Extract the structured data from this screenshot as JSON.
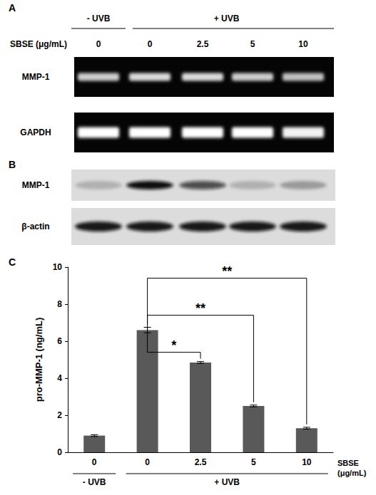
{
  "panel_a": {
    "label": "A",
    "group_labels": [
      "- UVB",
      "+ UVB"
    ],
    "dose_title": "SBSE (μg/mL)",
    "doses": [
      "0",
      "0",
      "2.5",
      "5",
      "10"
    ],
    "rows": [
      {
        "label": "MMP-1",
        "intensity": [
          0.8,
          0.85,
          0.85,
          0.8,
          0.75
        ]
      },
      {
        "label": "GAPDH",
        "intensity": [
          1,
          1,
          1,
          1,
          0.95
        ]
      }
    ]
  },
  "panel_b": {
    "label": "B",
    "rows": [
      {
        "label": "MMP-1",
        "intensity": [
          0.2,
          1,
          0.7,
          0.2,
          0.3
        ]
      },
      {
        "label": "β-actin",
        "intensity": [
          0.95,
          0.95,
          0.95,
          0.95,
          0.95
        ]
      }
    ]
  },
  "chart_data": {
    "type": "bar",
    "panel_label": "C",
    "categories": [
      "0",
      "0",
      "2.5",
      "5",
      "10"
    ],
    "values": [
      0.9,
      6.6,
      4.85,
      2.5,
      1.3
    ],
    "errors": [
      0.05,
      0.15,
      0.05,
      0.05,
      0.05
    ],
    "color": "#595959",
    "ylim": [
      0,
      10
    ],
    "yticks": [
      0,
      2,
      4,
      6,
      8,
      10
    ],
    "y_label": "pro-MMP-1 (ng/mL)",
    "x_label": "SBSE\n(μg/mL)",
    "group_labels": [
      {
        "label": "- UVB",
        "from": 0,
        "to": 0
      },
      {
        "label": "+ UVB",
        "from": 1,
        "to": 4
      }
    ],
    "significance": [
      {
        "from": 1,
        "to": 2,
        "label": "*",
        "y": 5.4
      },
      {
        "from": 1,
        "to": 3,
        "label": "**",
        "y": 7.4
      },
      {
        "from": 1,
        "to": 4,
        "label": "**",
        "y": 9.4
      }
    ],
    "grid": false
  }
}
